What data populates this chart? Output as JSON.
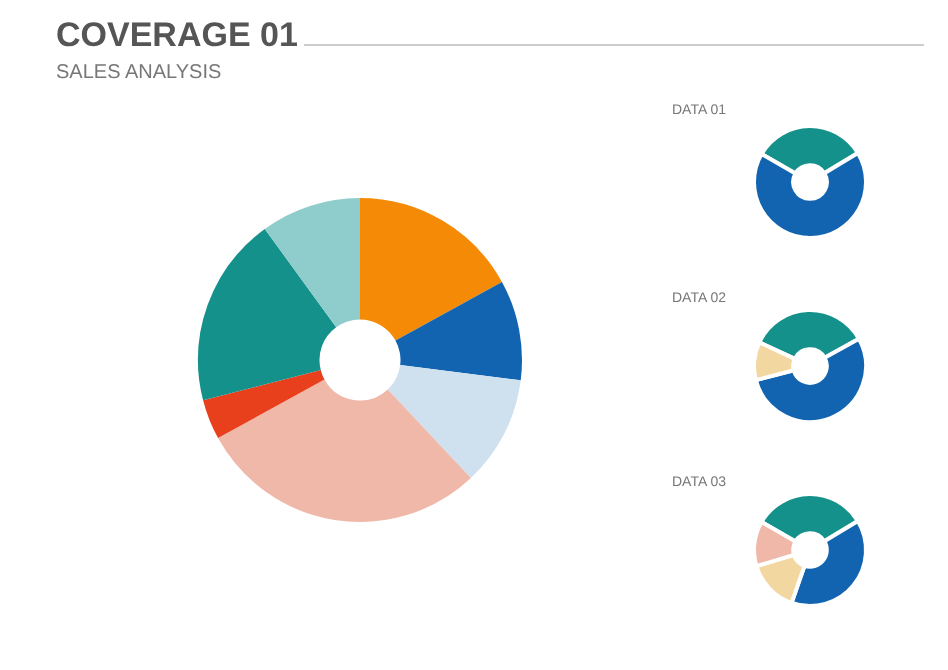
{
  "chart_data": [
    {
      "type": "donut",
      "title": "COVERAGE 01",
      "subtitle": "SALES ANALYSIS",
      "categories": [
        null,
        null,
        null,
        null,
        null,
        null,
        null
      ],
      "values": [
        17,
        10,
        11,
        29,
        4,
        19,
        10
      ],
      "colors": [
        "#f58a07",
        "#1264b0",
        "#cfe0ef",
        "#f0b8a8",
        "#e8401c",
        "#14918a",
        "#8ecdcb"
      ]
    },
    {
      "type": "donut",
      "title": "DATA 01",
      "categories": [
        null,
        null
      ],
      "values": [
        33,
        67
      ],
      "colors": [
        "#14918a",
        "#1264b0"
      ]
    },
    {
      "type": "donut",
      "title": "DATA 02",
      "categories": [
        null,
        null,
        null
      ],
      "values": [
        35,
        54,
        11
      ],
      "colors": [
        "#14918a",
        "#1264b0",
        "#f2d7a0"
      ]
    },
    {
      "type": "donut",
      "title": "DATA 03",
      "categories": [
        null,
        null,
        null,
        null
      ],
      "values": [
        33,
        39,
        15,
        13
      ],
      "colors": [
        "#14918a",
        "#1264b0",
        "#f2d7a0",
        "#f0b8a8"
      ]
    }
  ]
}
